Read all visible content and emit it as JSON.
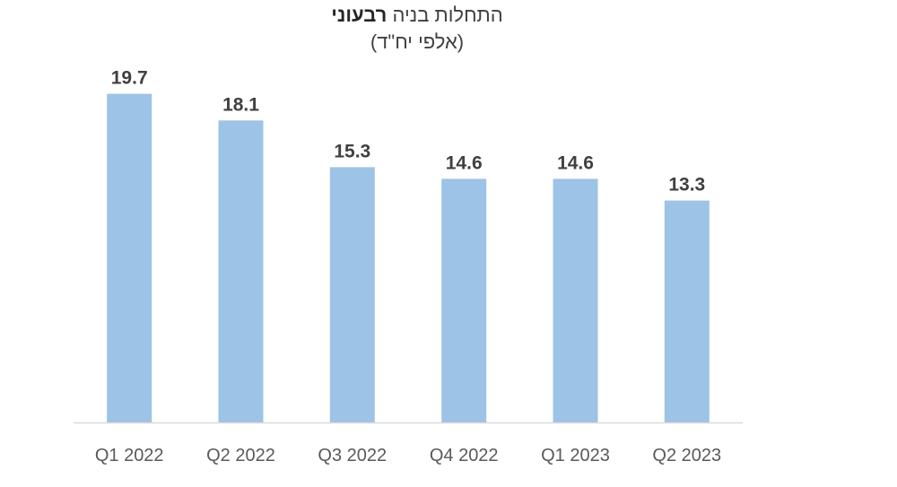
{
  "chart_data": {
    "type": "bar",
    "title": "התחלות בניה רבעוני",
    "title_parts": {
      "regular": "התחלות בניה",
      "bold": "רבעוני"
    },
    "subtitle": "(אלפי יח\"ד)",
    "categories": [
      "Q1 2022",
      "Q2 2022",
      "Q3 2022",
      "Q4 2022",
      "Q1 2023",
      "Q2 2023"
    ],
    "values": [
      19.7,
      18.1,
      15.3,
      14.6,
      14.6,
      13.3
    ],
    "data_labels": [
      "19.7",
      "18.1",
      "15.3",
      "14.6",
      "14.6",
      "13.3"
    ],
    "xlabel": "",
    "ylabel": "",
    "ylim": [
      0,
      20
    ],
    "grid": false,
    "legend": "none",
    "colors": {
      "bar": "#9dc3e6",
      "axis": "#d9d9d9",
      "label": "#404040",
      "tick": "#595959"
    }
  }
}
